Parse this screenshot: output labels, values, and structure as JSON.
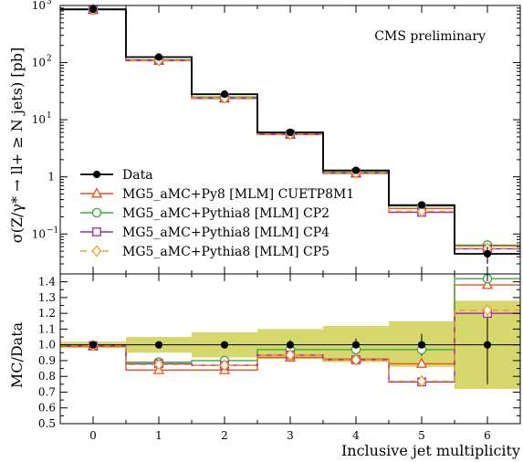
{
  "chart_data": [
    {
      "type": "line",
      "step": true,
      "log_y": true,
      "annotation": "CMS preliminary",
      "ylabel": "σ(Z/γ* → ll+ ≥ N jets) [pb]",
      "x": [
        0,
        1,
        2,
        3,
        4,
        5,
        6
      ],
      "xlim": [
        -0.5,
        6.5
      ],
      "ylim": [
        0.02,
        1000
      ],
      "ytick_labels": [
        {
          "v": 1000,
          "base": "10",
          "exp": "3"
        },
        {
          "v": 100,
          "base": "10",
          "exp": "2"
        },
        {
          "v": 10,
          "base": "10",
          "exp": "1"
        },
        {
          "v": 1,
          "base": "1",
          "exp": ""
        },
        {
          "v": 0.1,
          "base": "10",
          "exp": "−1"
        }
      ],
      "legend_position": "bottom-left",
      "series": [
        {
          "name": "Data",
          "color": "#000000",
          "marker": "filled-circle",
          "values": [
            860,
            125,
            28,
            6.0,
            1.3,
            0.32,
            0.045
          ],
          "errors": [
            20,
            3,
            1,
            0.2,
            0.05,
            0.03,
            0.015
          ]
        },
        {
          "name": "MG5_aMC+Py8 [MLM] CUETP8M1",
          "color": "#e8501e",
          "marker": "open-triangle",
          "values": [
            850,
            108,
            23.5,
            5.5,
            1.15,
            0.28,
            0.062
          ]
        },
        {
          "name": "MG5_aMC+Pythia8 [MLM] CP2",
          "color": "#3aa83a",
          "marker": "open-circle",
          "values": [
            840,
            112,
            25,
            5.8,
            1.22,
            0.31,
            0.064
          ]
        },
        {
          "name": "MG5_aMC+Pythia8 [MLM] CP4",
          "color": "#9a2aa8",
          "marker": "open-square",
          "values": [
            845,
            110,
            24,
            5.6,
            1.17,
            0.24,
            0.055
          ]
        },
        {
          "name": "MG5_aMC+Pythia8 [MLM] CP5",
          "color": "#f0a020",
          "marker": "open-diamond",
          "values": [
            848,
            109,
            24,
            5.6,
            1.18,
            0.25,
            0.056
          ]
        }
      ]
    },
    {
      "type": "line",
      "step": true,
      "ylabel": "MC/Data",
      "xlabel": "Inclusive jet multiplicity",
      "x": [
        0,
        1,
        2,
        3,
        4,
        5,
        6
      ],
      "categories": [
        "0",
        "1",
        "2",
        "3",
        "4",
        "5",
        "6"
      ],
      "xlim": [
        -0.5,
        6.5
      ],
      "ylim": [
        0.5,
        1.45
      ],
      "yticks": [
        0.5,
        0.6,
        0.7,
        0.8,
        0.9,
        1.0,
        1.1,
        1.2,
        1.3,
        1.4
      ],
      "ytick_labels": [
        "0.5",
        "0.6",
        "0.7",
        "0.8",
        "0.9",
        "1.0",
        "1.1",
        "1.2",
        "1.3",
        "1.4"
      ],
      "uncertainty_band": {
        "color": "#d6d86e",
        "low": [
          0.98,
          0.95,
          0.92,
          0.91,
          0.89,
          0.86,
          0.72
        ],
        "high": [
          1.02,
          1.05,
          1.08,
          1.1,
          1.12,
          1.15,
          1.28
        ]
      },
      "data_errors": [
        0.01,
        0.01,
        0.02,
        0.03,
        0.04,
        0.07,
        0.25
      ],
      "series": [
        {
          "name": "MG5_aMC+Py8 [MLM] CUETP8M1",
          "color": "#e8501e",
          "marker": "open-triangle",
          "values": [
            0.99,
            0.84,
            0.84,
            0.92,
            0.91,
            0.88,
            1.38
          ]
        },
        {
          "name": "MG5_aMC+Pythia8 [MLM] CP2",
          "color": "#3aa83a",
          "marker": "open-circle",
          "values": [
            0.995,
            0.89,
            0.9,
            0.97,
            0.97,
            0.97,
            1.42
          ]
        },
        {
          "name": "MG5_aMC+Pythia8 [MLM] CP4",
          "color": "#9a2aa8",
          "marker": "open-square",
          "values": [
            0.995,
            0.88,
            0.87,
            0.935,
            0.905,
            0.765,
            1.2
          ]
        },
        {
          "name": "MG5_aMC+Pythia8 [MLM] CP5",
          "color": "#f0a020",
          "marker": "open-diamond",
          "values": [
            0.995,
            0.875,
            0.87,
            0.935,
            0.905,
            0.77,
            1.22
          ]
        }
      ]
    }
  ]
}
